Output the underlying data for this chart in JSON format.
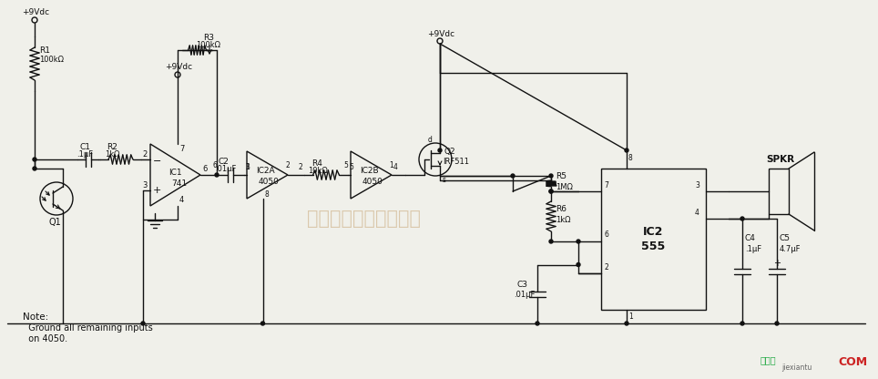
{
  "bg_color": "#f0f0ea",
  "line_color": "#111111",
  "text_color": "#111111",
  "watermark_color": "#c8a87a",
  "watermark_text": "杭州将睿科技有限公司",
  "note_line1": "Note:",
  "note_line2": "  Ground all remaining inputs",
  "note_line3": "  on 4050.",
  "brand_cn": "接线图",
  "brand_url": "jiexiantu",
  "brand_com": "COM",
  "fig_width": 9.64,
  "fig_height": 4.16,
  "dpi": 100
}
